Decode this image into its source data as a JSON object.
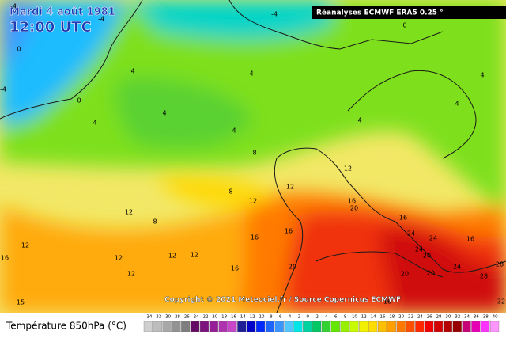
{
  "header": {
    "date": "Mardi 4 août 1981",
    "time": "12:00 UTC",
    "source": "Réanalyses ECMWF ERA5 0.25 °"
  },
  "copyright": "Copyright © 2021 Meteociel.fr / Source Copernicus ECMWF",
  "contour_labels": [
    -4,
    -4,
    -4,
    0,
    0,
    0,
    -4,
    4,
    4,
    4,
    4,
    4,
    4,
    4,
    4,
    8,
    8,
    8,
    12,
    12,
    12,
    12,
    12,
    12,
    12,
    12,
    12,
    16,
    16,
    16,
    16,
    16,
    16,
    15,
    16,
    20,
    24,
    24,
    20,
    24,
    20,
    20,
    20,
    28,
    28,
    32,
    24,
    16
  ],
  "legend": {
    "title": "Température 850hPa (°C)",
    "labels": [
      -34,
      -32,
      -30,
      -28,
      -26,
      -24,
      -22,
      -20,
      -18,
      -16,
      -14,
      -12,
      -10,
      -8,
      -6,
      -4,
      -2,
      0,
      2,
      4,
      6,
      8,
      10,
      12,
      14,
      16,
      18,
      20,
      22,
      24,
      26,
      28,
      30,
      32,
      34,
      36,
      38,
      40
    ],
    "colors": [
      "#cfcfcf",
      "#bdbdbd",
      "#a8a8a8",
      "#939393",
      "#7e7e7e",
      "#640a64",
      "#7d147d",
      "#961e96",
      "#af32af",
      "#c846c8",
      "#1e1e96",
      "#0000c8",
      "#0028ff",
      "#1e64ff",
      "#3c96ff",
      "#50c8ff",
      "#00e6e6",
      "#00d2a0",
      "#00c864",
      "#32d232",
      "#64e600",
      "#96f000",
      "#c8fa00",
      "#f0f000",
      "#ffdc00",
      "#ffbe00",
      "#ffa000",
      "#ff7800",
      "#ff5000",
      "#ff2800",
      "#f00000",
      "#d20000",
      "#b40000",
      "#960000",
      "#c80078",
      "#e600b4",
      "#ff32ff",
      "#ff96ff"
    ]
  }
}
